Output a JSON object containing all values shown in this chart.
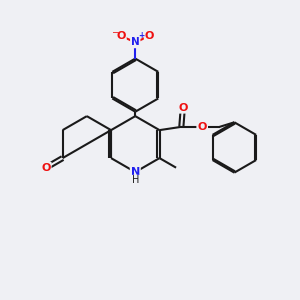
{
  "bg_color": "#eff0f4",
  "bond_color": "#1a1a1a",
  "N_color": "#2020ee",
  "O_color": "#ee1010",
  "lw": 1.5,
  "fig_size": [
    3.0,
    3.0
  ],
  "dpi": 100,
  "xlim": [
    0,
    10
  ],
  "ylim": [
    0,
    10
  ]
}
